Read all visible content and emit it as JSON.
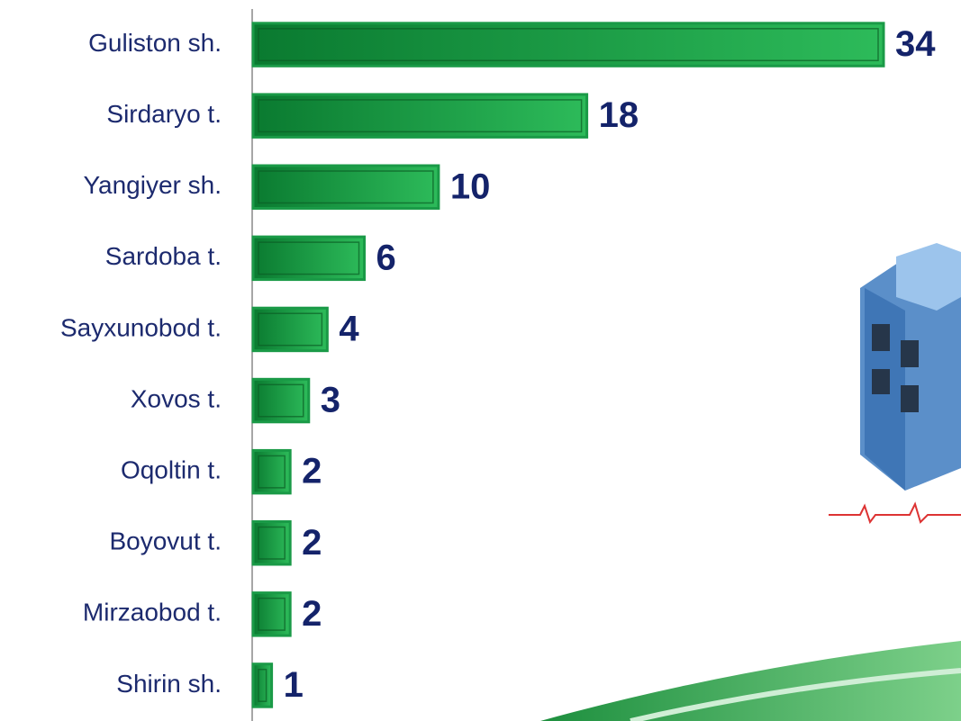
{
  "chart_data": {
    "type": "barh",
    "categories": [
      "Guliston sh.",
      "Sirdaryo t.",
      "Yangiyer sh.",
      "Sardoba t.",
      "Sayxunobod t.",
      "Xovos t.",
      "Oqoltin t.",
      "Boyovut t.",
      "Mirzaobod t.",
      "Shirin sh."
    ],
    "values": [
      34,
      18,
      10,
      6,
      4,
      3,
      2,
      2,
      2,
      1
    ],
    "color": "#1a9a47"
  }
}
